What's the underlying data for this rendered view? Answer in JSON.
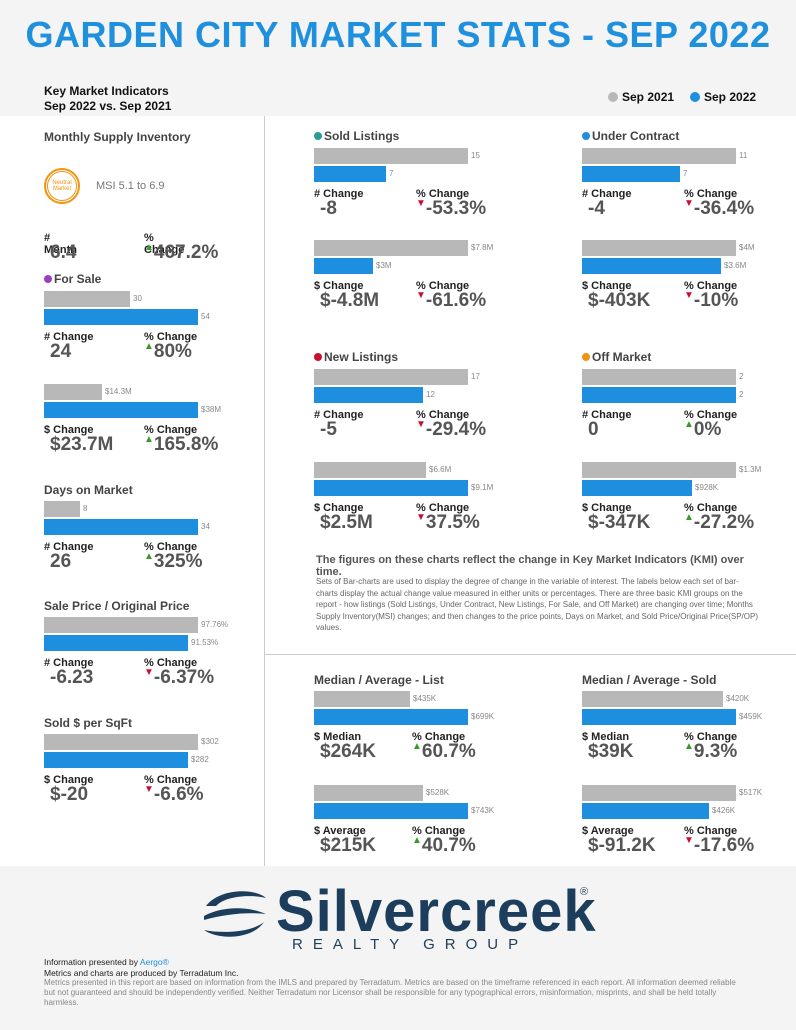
{
  "header": {
    "title": "GARDEN CITY MARKET STATS - SEP 2022",
    "kmi_line1": "Key Market Indicators",
    "kmi_line2": "Sep 2022 vs. Sep 2021",
    "legend_2021": "Sep 2021",
    "legend_2022": "Sep 2022",
    "color_2021": "#b8b8b8",
    "color_2022": "#1e8fdf"
  },
  "msi": {
    "title": "Monthly Supply Inventory",
    "badge": "Neutral Market",
    "range": "MSI 5.1 to 6.9",
    "label_a": "# Month",
    "value_a": "6.4",
    "label_b": "% Change",
    "value_b": "467.2%",
    "dir": "up"
  },
  "for_sale": {
    "title": "For Sale",
    "dot": "#9b3fbf",
    "units": {
      "v2021": 30,
      "v2022": 54,
      "l2021": "30",
      "l2022": "54",
      "label_a": "# Change",
      "value_a": "24",
      "label_b": "% Change",
      "value_b": "80%",
      "dir": "up"
    },
    "dollars": {
      "v2021": 14.3,
      "v2022": 38,
      "l2021": "$14.3M",
      "l2022": "$38M",
      "label_a": "$ Change",
      "value_a": "$23.7M",
      "label_b": "% Change",
      "value_b": "165.8%",
      "dir": "up"
    }
  },
  "dom": {
    "title": "Days on Market",
    "v2021": 8,
    "v2022": 34,
    "l2021": "8",
    "l2022": "34",
    "label_a": "# Change",
    "value_a": "26",
    "label_b": "% Change",
    "value_b": "325%",
    "dir": "up"
  },
  "sp_op": {
    "title": "Sale Price / Original Price",
    "v2021": 97.76,
    "v2022": 91.53,
    "l2021": "97.76%",
    "l2022": "91.53%",
    "label_a": "# Change",
    "value_a": "-6.23",
    "label_b": "% Change",
    "value_b": "-6.37%",
    "dir": "down"
  },
  "sqft": {
    "title": "Sold $ per SqFt",
    "v2021": 302,
    "v2022": 282,
    "l2021": "$302",
    "l2022": "$282",
    "label_a": "$ Change",
    "value_a": "$-20",
    "label_b": "% Change",
    "value_b": "-6.6%",
    "dir": "down"
  },
  "sold": {
    "title": "Sold Listings",
    "dot": "#2a9d8f",
    "units": {
      "v2021": 15,
      "v2022": 7,
      "l2021": "15",
      "l2022": "7",
      "label_a": "# Change",
      "value_a": "-8",
      "label_b": "% Change",
      "value_b": "-53.3%",
      "dir": "down"
    },
    "dollars": {
      "v2021": 7.8,
      "v2022": 3,
      "l2021": "$7.8M",
      "l2022": "$3M",
      "label_a": "$ Change",
      "value_a": "$-4.8M",
      "label_b": "% Change",
      "value_b": "-61.6%",
      "dir": "down"
    }
  },
  "under_contract": {
    "title": "Under Contract",
    "dot": "#1e8fdf",
    "units": {
      "v2021": 11,
      "v2022": 7,
      "l2021": "11",
      "l2022": "7",
      "label_a": "# Change",
      "value_a": "-4",
      "label_b": "% Change",
      "value_b": "-36.4%",
      "dir": "down"
    },
    "dollars": {
      "v2021": 4,
      "v2022": 3.6,
      "l2021": "$4M",
      "l2022": "$3.6M",
      "label_a": "$ Change",
      "value_a": "$-403K",
      "label_b": "% Change",
      "value_b": "-10%",
      "dir": "down"
    }
  },
  "new_listings": {
    "title": "New Listings",
    "dot": "#c8102e",
    "units": {
      "v2021": 17,
      "v2022": 12,
      "l2021": "17",
      "l2022": "12",
      "label_a": "# Change",
      "value_a": "-5",
      "label_b": "% Change",
      "value_b": "-29.4%",
      "dir": "down"
    },
    "dollars": {
      "v2021": 6.6,
      "v2022": 9.1,
      "l2021": "$6.6M",
      "l2022": "$9.1M",
      "label_a": "$ Change",
      "value_a": "$2.5M",
      "label_b": "% Change",
      "value_b": "37.5%",
      "dir": "down"
    }
  },
  "off_market": {
    "title": "Off Market",
    "dot": "#f29410",
    "units": {
      "v2021": 2,
      "v2022": 2,
      "l2021": "2",
      "l2022": "2",
      "label_a": "# Change",
      "value_a": "0",
      "label_b": "% Change",
      "value_b": "0%",
      "dir": "up"
    },
    "dollars": {
      "v2021": 1.3,
      "v2022": 0.928,
      "l2021": "$1.3M",
      "l2022": "$928K",
      "label_a": "$ Change",
      "value_a": "$-347K",
      "label_b": "% Change",
      "value_b": "-27.2%",
      "dir": "up"
    }
  },
  "notes": {
    "heading": "The figures on these charts reflect the change in Key Market Indicators (KMI) over time.",
    "body": "Sets of Bar-charts are used to display the degree of change in the variable of interest. The labels below each set of bar-charts display the actual change value measured in either units or percentages. There are three basic KMI groups on the report - how listings (Sold Listings, Under Contract, New Listings, For Sale, and Off Market) are changing over time; Months Supply Inventory(MSI) changes; and then changes to the price points, Days on Market, and Sold Price/Original Price(SP/OP) values."
  },
  "list": {
    "title": "Median / Average - List",
    "median": {
      "v2021": 435,
      "v2022": 699,
      "l2021": "$435K",
      "l2022": "$699K",
      "label_a": "$ Median",
      "value_a": "$264K",
      "label_b": "% Change",
      "value_b": "60.7%",
      "dir": "up"
    },
    "average": {
      "v2021": 528,
      "v2022": 743,
      "l2021": "$528K",
      "l2022": "$743K",
      "label_a": "$ Average",
      "value_a": "$215K",
      "label_b": "% Change",
      "value_b": "40.7%",
      "dir": "up"
    }
  },
  "sold_prices": {
    "title": "Median / Average - Sold",
    "median": {
      "v2021": 420,
      "v2022": 459,
      "l2021": "$420K",
      "l2022": "$459K",
      "label_a": "$ Median",
      "value_a": "$39K",
      "label_b": "% Change",
      "value_b": "9.3%",
      "dir": "up"
    },
    "average": {
      "v2021": 517,
      "v2022": 426,
      "l2021": "$517K",
      "l2022": "$426K",
      "label_a": "$ Average",
      "value_a": "$-91.2K",
      "label_b": "% Change",
      "value_b": "-17.6%",
      "dir": "down"
    }
  },
  "logo": {
    "word": "Silvercreek",
    "sub": "REALTY GROUP",
    "reg": "®"
  },
  "footer": {
    "line1_prefix": "Information presented by ",
    "line1_link": "Aergo®",
    "line2": "Metrics and charts are produced by Terradatum Inc.",
    "disclaimer": "Metrics presented in this report are based on information from the IMLS and prepared by Terradatum. Metrics are based on the timeframe referenced in each report. All information deemed reliable but not guaranteed and should be independently verified. Neither Terradatum nor Licensor shall be responsible for any typographical errors, misinformation, misprints, and shall be held totally harmless."
  }
}
